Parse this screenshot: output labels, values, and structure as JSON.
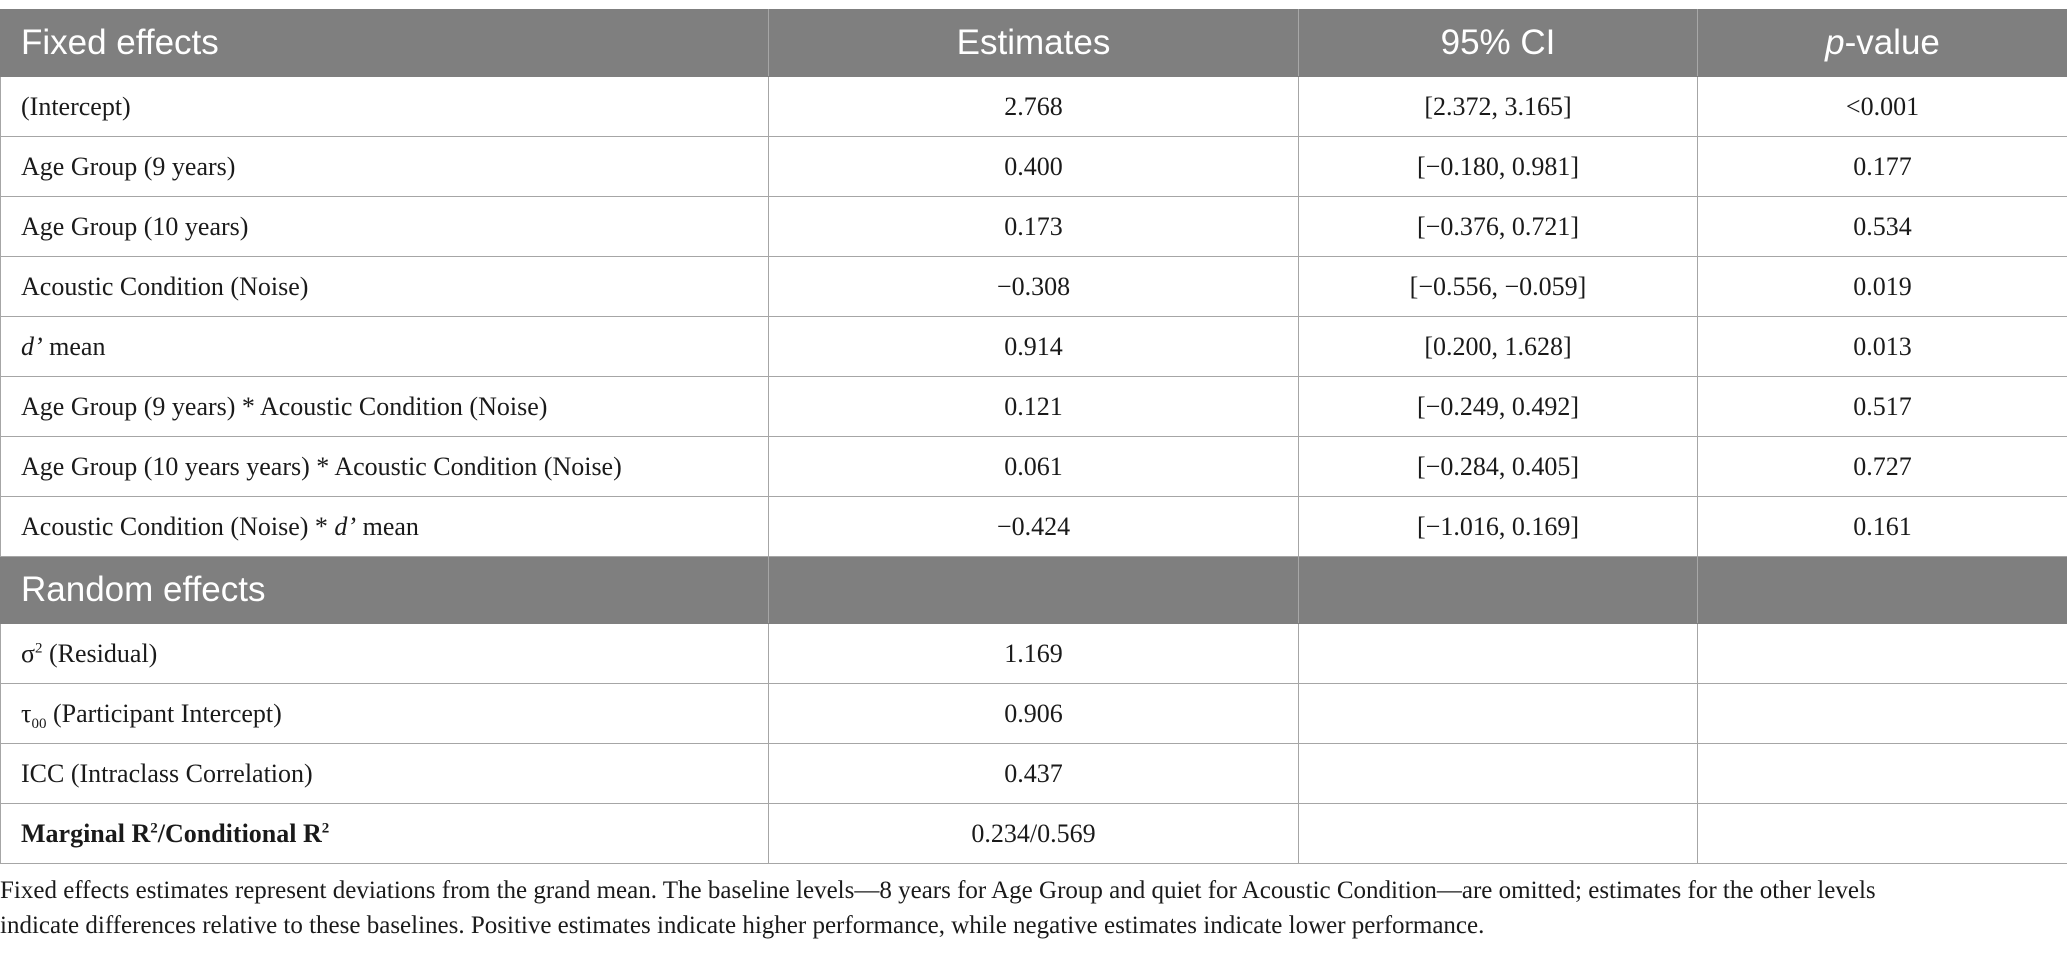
{
  "header": {
    "col1": "Fixed effects",
    "col2": "Estimates",
    "col3": "95% CI",
    "col4_italic": "p",
    "col4_rest": "-value"
  },
  "fixed_rows": [
    {
      "term": "(Intercept)",
      "estimate": "2.768",
      "ci": "[2.372, 3.165]",
      "p": "<0.001"
    },
    {
      "term": "Age Group (9 years)",
      "estimate": "0.400",
      "ci": "[−0.180, 0.981]",
      "p": "0.177"
    },
    {
      "term": "Age Group (10 years)",
      "estimate": "0.173",
      "ci": "[−0.376, 0.721]",
      "p": "0.534"
    },
    {
      "term": "Acoustic Condition (Noise)",
      "estimate": "−0.308",
      "ci": "[−0.556, −0.059]",
      "p": "0.019"
    },
    {
      "term_italic": "d’",
      "term_rest": " mean",
      "estimate": "0.914",
      "ci": "[0.200, 1.628]",
      "p": "0.013"
    },
    {
      "term": "Age Group (9 years) * Acoustic Condition (Noise)",
      "estimate": "0.121",
      "ci": "[−0.249, 0.492]",
      "p": "0.517"
    },
    {
      "term": "Age Group (10 years years) * Acoustic Condition (Noise)",
      "estimate": "0.061",
      "ci": "[−0.284, 0.405]",
      "p": "0.727"
    },
    {
      "term_pre": "Acoustic Condition (Noise) * ",
      "term_italic": "d’",
      "term_rest": " mean",
      "estimate": "−0.424",
      "ci": "[−1.016, 0.169]",
      "p": "0.161"
    }
  ],
  "random_section": {
    "title": "Random effects"
  },
  "random_rows": [
    {
      "symbol": "σ",
      "sup": "2",
      "rest": " (Residual)",
      "estimate": "1.169"
    },
    {
      "symbol": "τ",
      "sub": "00",
      "rest": " (Participant Intercept)",
      "estimate": "0.906"
    },
    {
      "term": "ICC (Intraclass Correlation)",
      "estimate": "0.437"
    },
    {
      "term_a": "Marginal R",
      "sup_a": "2",
      "term_b": "/Conditional R",
      "sup_b": "2",
      "estimate": "0.234/0.569"
    }
  ],
  "footnote": {
    "line1": "Fixed effects estimates represent deviations from the grand mean. The baseline levels—8 years for Age Group and quiet for Acoustic Condition—are omitted; estimates for the other levels",
    "line2": "indicate differences relative to these baselines. Positive estimates indicate higher performance, while negative estimates indicate lower performance."
  }
}
